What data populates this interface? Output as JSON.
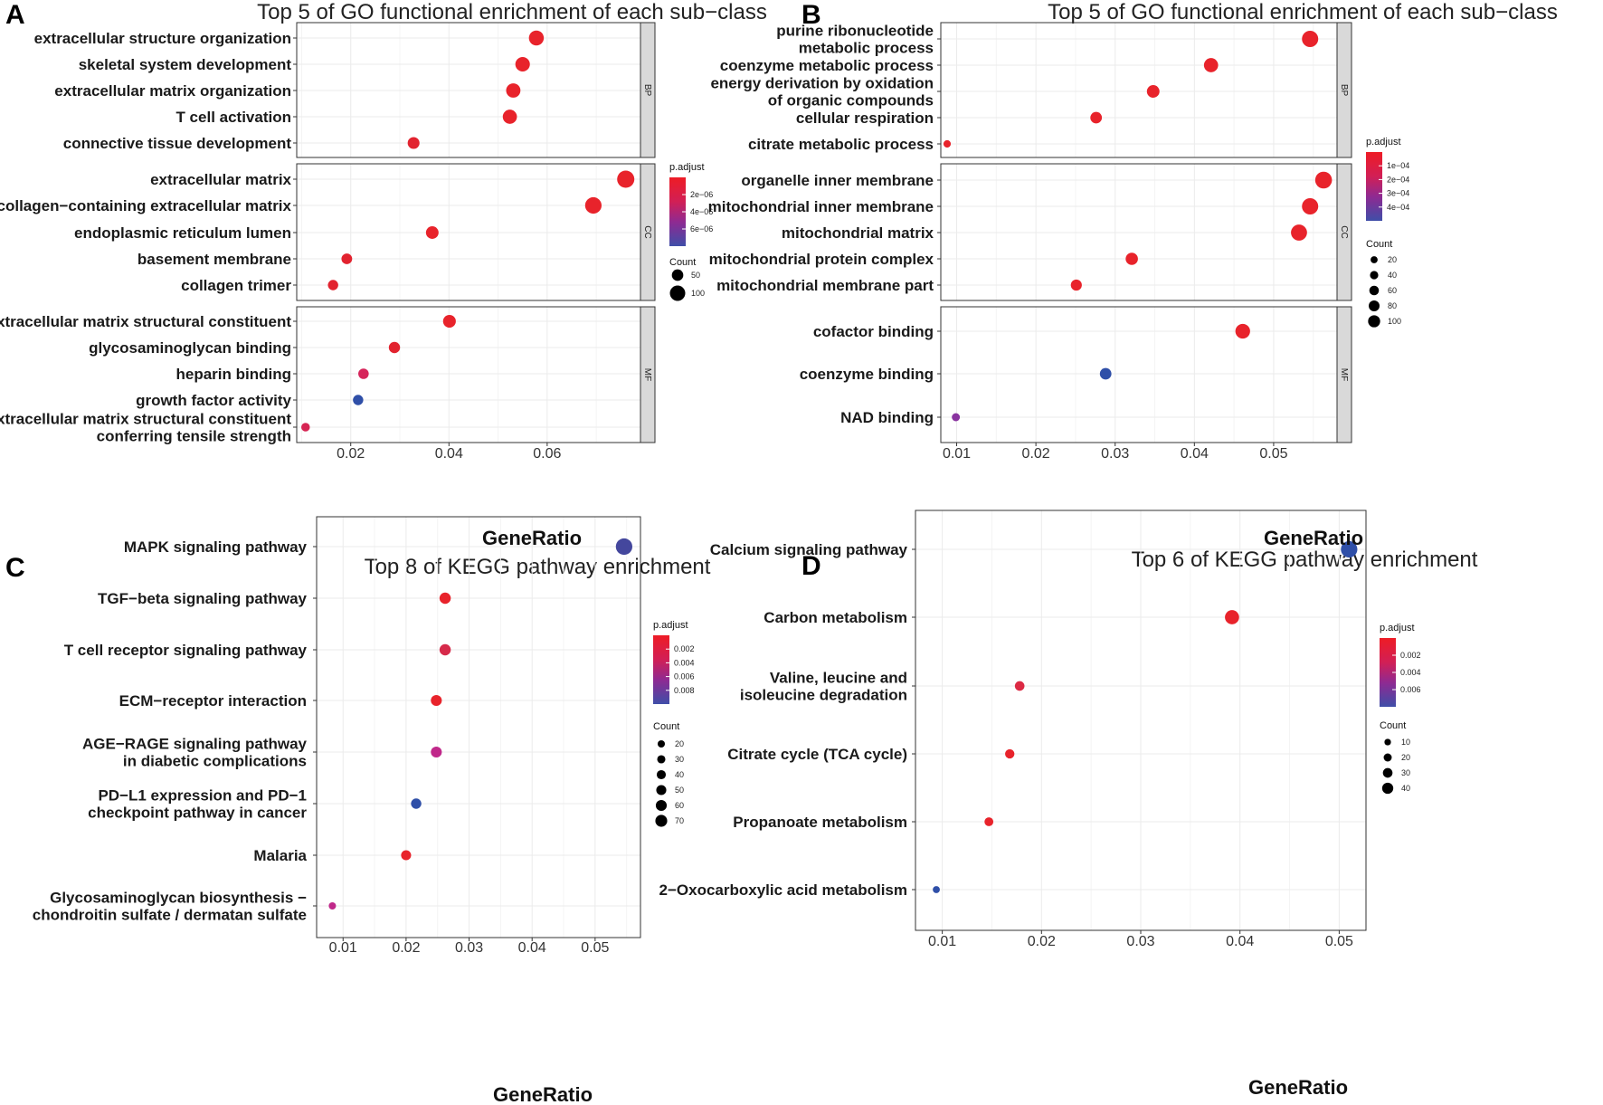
{
  "panel_labels": [
    "A",
    "B",
    "C",
    "D"
  ],
  "chart_data": [
    {
      "id": "A",
      "type": "scatter",
      "title": "Top 5 of GO functional enrichment of each sub−class",
      "xlabel": "GeneRatio",
      "xlim": [
        0.009,
        0.079
      ],
      "xticks": [
        0.02,
        0.04,
        0.06
      ],
      "xtick_labels": [
        "0.02",
        "0.04",
        "0.06"
      ],
      "facets": [
        {
          "strip": "BP",
          "terms": [
            {
              "label": [
                "extracellular structure organization"
              ],
              "x": 0.0578,
              "count": 100,
              "color": "#e8232b"
            },
            {
              "label": [
                "skeletal system development"
              ],
              "x": 0.055,
              "count": 95,
              "color": "#e8232b"
            },
            {
              "label": [
                "extracellular matrix organization"
              ],
              "x": 0.0531,
              "count": 92,
              "color": "#e8232b"
            },
            {
              "label": [
                "T cell activation"
              ],
              "x": 0.0524,
              "count": 90,
              "color": "#e8232b"
            },
            {
              "label": [
                "connective tissue development"
              ],
              "x": 0.0328,
              "count": 60,
              "color": "#e2232f"
            }
          ]
        },
        {
          "strip": "CC",
          "terms": [
            {
              "label": [
                "extracellular matrix"
              ],
              "x": 0.076,
              "count": 130,
              "color": "#e8232b"
            },
            {
              "label": [
                "collagen−containing extracellular matrix"
              ],
              "x": 0.0694,
              "count": 120,
              "color": "#e8232b"
            },
            {
              "label": [
                "endoplasmic reticulum lumen"
              ],
              "x": 0.0366,
              "count": 70,
              "color": "#e8232b"
            },
            {
              "label": [
                "basement membrane"
              ],
              "x": 0.0192,
              "count": 45,
              "color": "#e2232f"
            },
            {
              "label": [
                "collagen trimer"
              ],
              "x": 0.0164,
              "count": 40,
              "color": "#e2232f"
            }
          ]
        },
        {
          "strip": "MF",
          "terms": [
            {
              "label": [
                "extracellular matrix structural constituent"
              ],
              "x": 0.0401,
              "count": 72,
              "color": "#e8232b"
            },
            {
              "label": [
                "glycosaminoglycan binding"
              ],
              "x": 0.0289,
              "count": 52,
              "color": "#e2232f"
            },
            {
              "label": [
                "heparin binding"
              ],
              "x": 0.0226,
              "count": 42,
              "color": "#d6245a"
            },
            {
              "label": [
                "growth factor activity"
              ],
              "x": 0.0215,
              "count": 40,
              "color": "#2f4fa8"
            },
            {
              "label": [
                "extracellular matrix structural constituent",
                "conferring tensile strength"
              ],
              "x": 0.0108,
              "count": 18,
              "color": "#d62453"
            }
          ]
        }
      ],
      "legend_color": {
        "title": "p.adjust",
        "labels": [
          "2e−06",
          "4e−06",
          "6e−06"
        ],
        "colors": [
          "#e8232b",
          "#3f4ea8"
        ]
      },
      "legend_size": {
        "title": "Count",
        "labels": [
          "50",
          "100"
        ],
        "counts": [
          50,
          100
        ]
      }
    },
    {
      "id": "B",
      "type": "scatter",
      "title": "Top 5 of GO functional enrichment of each sub−class",
      "xlabel": "GeneRatio",
      "xlim": [
        0.008,
        0.058
      ],
      "xticks": [
        0.01,
        0.02,
        0.03,
        0.04,
        0.05
      ],
      "xtick_labels": [
        "0.01",
        "0.02",
        "0.03",
        "0.04",
        "0.05"
      ],
      "facets": [
        {
          "strip": "BP",
          "terms": [
            {
              "label": [
                "purine ribonucleotide",
                "metabolic process"
              ],
              "x": 0.0546,
              "count": 100,
              "color": "#e8232b"
            },
            {
              "label": [
                "coenzyme metabolic process"
              ],
              "x": 0.0421,
              "count": 80,
              "color": "#e8232b"
            },
            {
              "label": [
                "energy derivation by oxidation",
                "of organic compounds"
              ],
              "x": 0.0348,
              "count": 65,
              "color": "#e8232b"
            },
            {
              "label": [
                "cellular respiration"
              ],
              "x": 0.0276,
              "count": 55,
              "color": "#e8232b"
            },
            {
              "label": [
                "citrate metabolic process"
              ],
              "x": 0.0088,
              "count": 15,
              "color": "#e8232b"
            }
          ]
        },
        {
          "strip": "CC",
          "terms": [
            {
              "label": [
                "organelle inner membrane"
              ],
              "x": 0.0563,
              "count": 105,
              "color": "#e8232b"
            },
            {
              "label": [
                "mitochondrial inner membrane"
              ],
              "x": 0.0546,
              "count": 100,
              "color": "#e8232b"
            },
            {
              "label": [
                "mitochondrial matrix"
              ],
              "x": 0.0532,
              "count": 98,
              "color": "#e8232b"
            },
            {
              "label": [
                "mitochondrial protein complex"
              ],
              "x": 0.0321,
              "count": 62,
              "color": "#e8232b"
            },
            {
              "label": [
                "mitochondrial membrane part"
              ],
              "x": 0.0251,
              "count": 50,
              "color": "#e8232b"
            }
          ]
        },
        {
          "strip": "MF",
          "terms": [
            {
              "label": [
                "cofactor binding"
              ],
              "x": 0.0461,
              "count": 85,
              "color": "#e8232b"
            },
            {
              "label": [
                "coenzyme binding"
              ],
              "x": 0.0288,
              "count": 55,
              "color": "#2f4fa8"
            },
            {
              "label": [
                "NAD binding"
              ],
              "x": 0.0099,
              "count": 22,
              "color": "#8a34a0"
            }
          ]
        }
      ],
      "legend_color": {
        "title": "p.adjust",
        "labels": [
          "1e−04",
          "2e−04",
          "3e−04",
          "4e−04"
        ],
        "colors": [
          "#e8232b",
          "#3f4ea8"
        ]
      },
      "legend_size": {
        "title": "Count",
        "labels": [
          "20",
          "40",
          "60",
          "80",
          "100"
        ],
        "counts": [
          20,
          40,
          60,
          80,
          100
        ]
      }
    },
    {
      "id": "C",
      "type": "scatter",
      "title": "Top 8 of KEGG pathway enrichment",
      "xlabel": "GeneRatio",
      "xlim": [
        0.0058,
        0.0572
      ],
      "xticks": [
        0.01,
        0.02,
        0.03,
        0.04,
        0.05
      ],
      "xtick_labels": [
        "0.01",
        "0.02",
        "0.03",
        "0.04",
        "0.05"
      ],
      "terms": [
        {
          "label": [
            "MAPK signaling pathway"
          ],
          "x": 0.0546,
          "count": 72,
          "color": "#44479d"
        },
        {
          "label": [
            "TGF−beta signaling pathway"
          ],
          "x": 0.0262,
          "count": 38,
          "color": "#e8232b"
        },
        {
          "label": [
            "T cell receptor signaling pathway"
          ],
          "x": 0.0262,
          "count": 38,
          "color": "#d62a4a"
        },
        {
          "label": [
            "ECM−receptor interaction"
          ],
          "x": 0.0248,
          "count": 36,
          "color": "#e8232b"
        },
        {
          "label": [
            "AGE−RAGE signaling pathway",
            "in diabetic complications"
          ],
          "x": 0.0248,
          "count": 36,
          "color": "#c0288a"
        },
        {
          "label": [
            "PD−L1 expression and PD−1",
            "checkpoint pathway in cancer"
          ],
          "x": 0.0216,
          "count": 32,
          "color": "#2f4fa8"
        },
        {
          "label": [
            "Malaria"
          ],
          "x": 0.02,
          "count": 30,
          "color": "#e8232b"
        },
        {
          "label": [
            "Glycosaminoglycan biosynthesis −",
            "chondroitin sulfate / dermatan sulfate"
          ],
          "x": 0.0083,
          "count": 12,
          "color": "#c0288a"
        }
      ],
      "legend_color": {
        "title": "p.adjust",
        "labels": [
          "0.002",
          "0.004",
          "0.006",
          "0.008"
        ],
        "colors": [
          "#e8232b",
          "#3f4ea8"
        ]
      },
      "legend_size": {
        "title": "Count",
        "labels": [
          "20",
          "30",
          "40",
          "50",
          "60",
          "70"
        ],
        "counts": [
          20,
          30,
          40,
          50,
          60,
          70
        ]
      }
    },
    {
      "id": "D",
      "type": "scatter",
      "title": "Top 6 of KEGG pathway enrichment",
      "xlabel": "GeneRatio",
      "xlim": [
        0.0073,
        0.0527
      ],
      "xticks": [
        0.01,
        0.02,
        0.03,
        0.04,
        0.05
      ],
      "xtick_labels": [
        "0.01",
        "0.02",
        "0.03",
        "0.04",
        "0.05"
      ],
      "terms": [
        {
          "label": [
            "Calcium signaling pathway"
          ],
          "x": 0.051,
          "count": 45,
          "color": "#2f4fa8"
        },
        {
          "label": [
            "Carbon metabolism"
          ],
          "x": 0.0392,
          "count": 36,
          "color": "#e8232b"
        },
        {
          "label": [
            "Valine, leucine and",
            "isoleucine degradation"
          ],
          "x": 0.0178,
          "count": 18,
          "color": "#dc2a44"
        },
        {
          "label": [
            "Citrate cycle (TCA cycle)"
          ],
          "x": 0.0168,
          "count": 17,
          "color": "#e8232b"
        },
        {
          "label": [
            "Propanoate metabolism"
          ],
          "x": 0.0147,
          "count": 15,
          "color": "#e8232b"
        },
        {
          "label": [
            "2−Oxocarboxylic acid metabolism"
          ],
          "x": 0.0094,
          "count": 8,
          "color": "#2f4fa8"
        }
      ],
      "legend_color": {
        "title": "p.adjust",
        "labels": [
          "0.002",
          "0.004",
          "0.006"
        ],
        "colors": [
          "#e8232b",
          "#3f4ea8"
        ]
      },
      "legend_size": {
        "title": "Count",
        "labels": [
          "10",
          "20",
          "30",
          "40"
        ],
        "counts": [
          10,
          20,
          30,
          40
        ]
      }
    }
  ]
}
